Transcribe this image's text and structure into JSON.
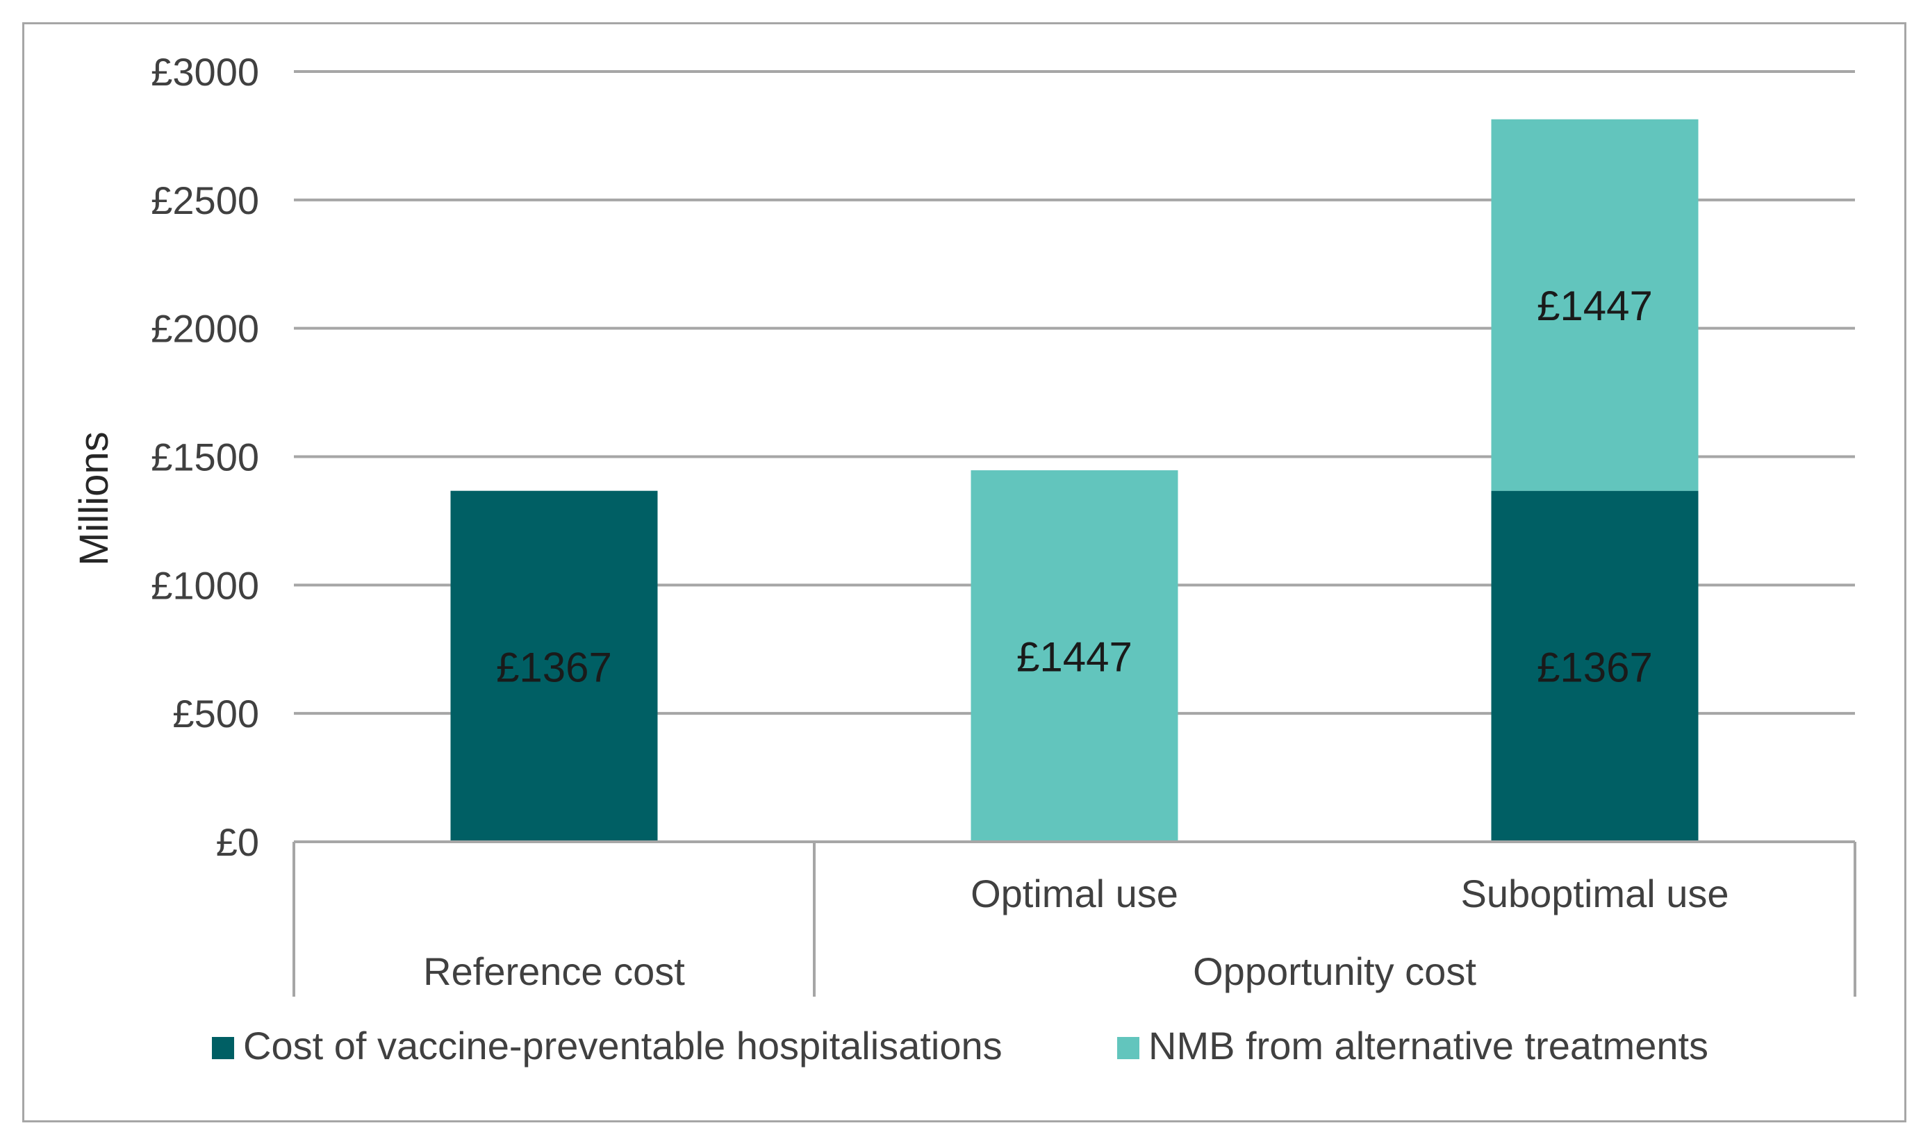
{
  "chart_data": {
    "type": "bar",
    "stacked": true,
    "title": "",
    "xlabel": "",
    "ylabel": "Millions",
    "ylim": [
      0,
      3000
    ],
    "y_ticks": [
      0,
      500,
      1000,
      1500,
      2000,
      2500,
      3000
    ],
    "y_tick_labels": [
      "£0",
      "£500",
      "£1000",
      "£1500",
      "£2000",
      "£2500",
      "£3000"
    ],
    "grid": true,
    "legend_position": "bottom",
    "categories": [
      "Reference cost",
      "Optimal use",
      "Suboptimal use"
    ],
    "category_groups": [
      {
        "label": "Reference cost",
        "members": [
          "Reference cost"
        ],
        "show_member_labels": false
      },
      {
        "label": "Opportunity cost",
        "members": [
          "Optimal use",
          "Suboptimal use"
        ],
        "show_member_labels": true
      }
    ],
    "series": [
      {
        "name": "Cost of vaccine-preventable hospitalisations",
        "color": "#005f64",
        "values": [
          1367,
          0,
          1367
        ],
        "labels": [
          "£1367",
          "",
          "£1367"
        ]
      },
      {
        "name": "NMB from alternative treatments",
        "color": "#62c5bd",
        "values": [
          0,
          1447,
          1447
        ],
        "labels": [
          "",
          "£1447",
          "£1447"
        ]
      }
    ]
  }
}
